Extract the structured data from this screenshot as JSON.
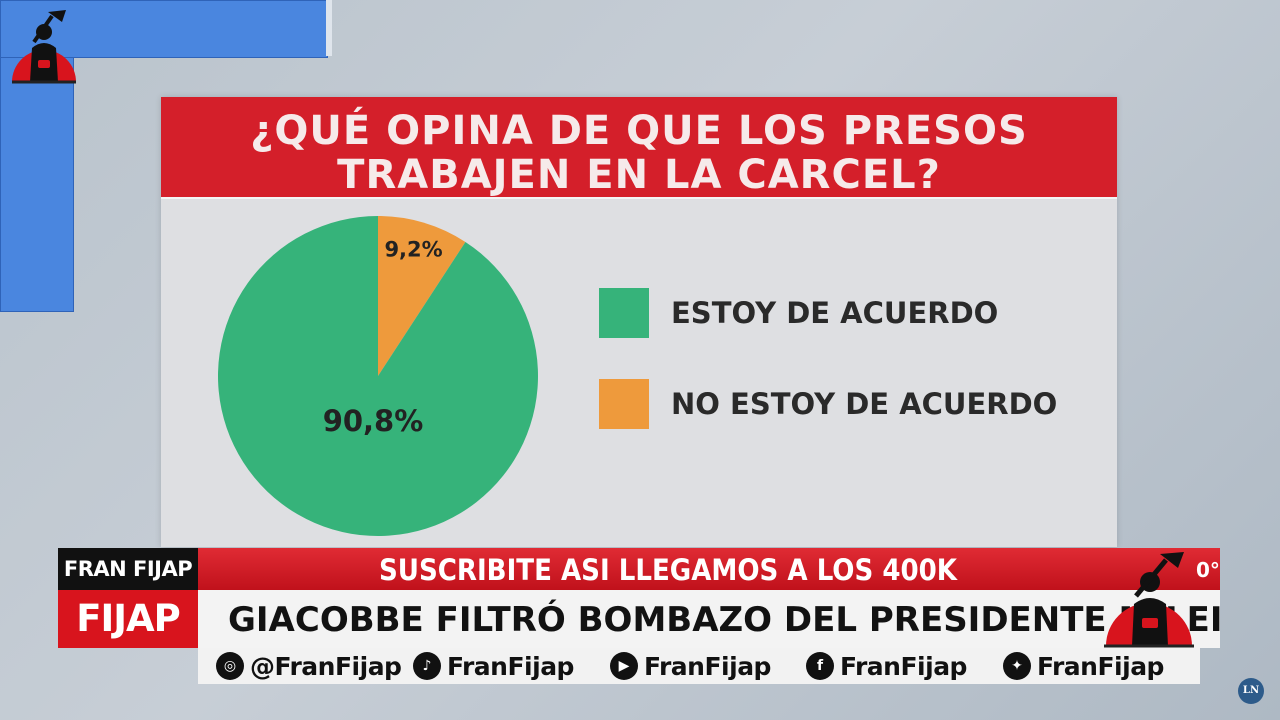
{
  "colors": {
    "title_bg": "#d41f2a",
    "card_bg": "#dedfe2",
    "agree": "#36b37a",
    "disagree": "#ee9a3c",
    "ticker_red": "#d8141d",
    "ticker_white": "#f3f3f3"
  },
  "chart_data": {
    "type": "pie",
    "title": "¿QUÉ OPINA DE QUE LOS PRESOS TRABAJEN EN LA CARCEL?",
    "title_lines": [
      "¿QUÉ OPINA DE QUE LOS PRESOS",
      "TRABAJEN EN LA CARCEL?"
    ],
    "categories": [
      "ESTOY DE ACUERDO",
      "NO ESTOY DE ACUERDO"
    ],
    "values": [
      90.8,
      9.2
    ],
    "data_labels": [
      "90,8%",
      "9,2%"
    ],
    "colors": [
      "#36b37a",
      "#ee9a3c"
    ],
    "legend_position": "right"
  },
  "overlay": {
    "brand_top": "FRAN FIJAP",
    "brand_bottom": "FIJAP",
    "ticker_top": "SUSCRIBITE ASI LLEGAMOS A LOS 400K",
    "ticker_main": "GIACOBBE FILTRÓ BOMBAZO DEL PRESIDENTE MILEI",
    "degree_fragment": "0°",
    "socials": [
      {
        "icon": "instagram-icon",
        "glyph": "◎",
        "handle": "@FranFijap"
      },
      {
        "icon": "tiktok-icon",
        "glyph": "♪",
        "handle": "FranFijap"
      },
      {
        "icon": "youtube-icon",
        "glyph": "▶",
        "handle": "FranFijap"
      },
      {
        "icon": "facebook-icon",
        "glyph": "f",
        "handle": "FranFijap"
      },
      {
        "icon": "twitter-icon",
        "glyph": "✦",
        "handle": "FranFijap"
      }
    ],
    "corner_badge": "LN"
  }
}
